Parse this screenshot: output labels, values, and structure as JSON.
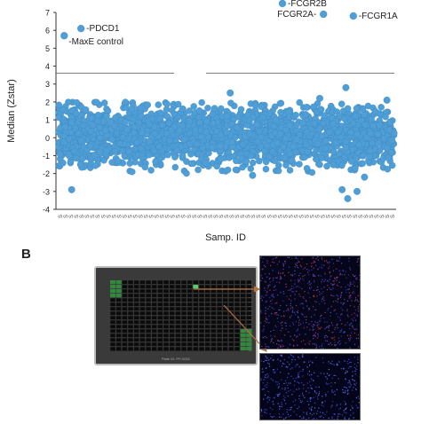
{
  "panel_label": "B",
  "chart_data": {
    "type": "scatter",
    "ylabel": "Median (Zstar)",
    "xlabel": "Samp. ID",
    "ylim": [
      -4,
      7
    ],
    "yticks": [
      -4,
      -3,
      -2,
      -1,
      0,
      1,
      2,
      3,
      4,
      5,
      6,
      7
    ],
    "x_tick_label": "S",
    "threshold_y": 3.6,
    "point_color": "#4f9ed6",
    "outliers": [
      {
        "label": "-PDCD1",
        "x": 60,
        "y": 6.1
      },
      {
        "label": "-MaxE control",
        "x": 15,
        "y": 5.7
      },
      {
        "label": "-FCGR2B",
        "x": 600,
        "y": 7.5
      },
      {
        "label": "FCGR2A-",
        "x": 710,
        "y": 6.9
      },
      {
        "label": "-FCGR1A",
        "x": 790,
        "y": 6.8
      }
    ],
    "bulk": {
      "n_points": 2200,
      "x_range": [
        0,
        900
      ],
      "y_center": 0.1,
      "y_spread": 0.8
    },
    "notable_points": [
      {
        "x": 35,
        "y": -2.9
      },
      {
        "x": 460,
        "y": 2.5
      },
      {
        "x": 760,
        "y": -2.9
      },
      {
        "x": 775,
        "y": -3.4
      },
      {
        "x": 800,
        "y": -3.0
      },
      {
        "x": 770,
        "y": 2.8
      },
      {
        "x": 820,
        "y": -2.2
      },
      {
        "x": 700,
        "y": 2.2
      },
      {
        "x": 520,
        "y": -2.1
      },
      {
        "x": 880,
        "y": 2.1
      }
    ]
  },
  "plate": {
    "footer": "Plate ID: PP-0001"
  }
}
